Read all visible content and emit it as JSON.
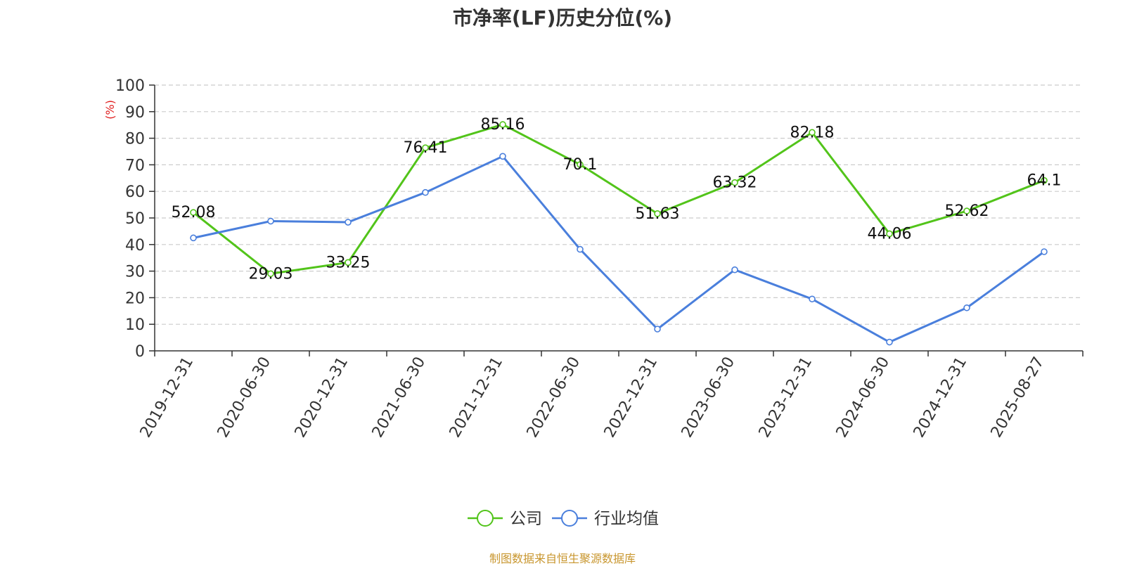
{
  "title": "市净率(LF)历史分位(%)",
  "source_note": "制图数据来自恒生聚源数据库",
  "colors": {
    "company": "#52c41a",
    "industry": "#4a7fdc",
    "unit_label": "#e02020",
    "axis": "#333333",
    "grid": "#cccccc",
    "source": "#c8962e"
  },
  "chart_data": {
    "type": "line",
    "ylabel": "(%)",
    "ylim": [
      0,
      100
    ],
    "yticks": [
      0,
      10,
      20,
      30,
      40,
      50,
      60,
      70,
      80,
      90,
      100
    ],
    "grid": "horizontal-dashed",
    "legend_position": "bottom-center",
    "categories": [
      "2019-12-31",
      "2020-06-30",
      "2020-12-31",
      "2021-06-30",
      "2021-12-31",
      "2022-06-30",
      "2022-12-31",
      "2023-06-30",
      "2023-12-31",
      "2024-06-30",
      "2024-12-31",
      "2025-08-27"
    ],
    "series": [
      {
        "name": "公司",
        "color": "#52c41a",
        "values": [
          52.08,
          29.03,
          33.25,
          76.41,
          85.16,
          70.1,
          51.63,
          63.32,
          82.18,
          44.06,
          52.62,
          64.1
        ],
        "labels": [
          "52.08",
          "29.03",
          "33.25",
          "76.41",
          "85.16",
          "70.1",
          "51.63",
          "63.32",
          "82.18",
          "44.06",
          "52.62",
          "64.1"
        ]
      },
      {
        "name": "行业均值",
        "color": "#4a7fdc",
        "values": [
          42.5,
          48.8,
          48.4,
          59.6,
          73.2,
          38.2,
          8.2,
          30.5,
          19.5,
          3.3,
          16.2,
          37.3
        ]
      }
    ]
  }
}
